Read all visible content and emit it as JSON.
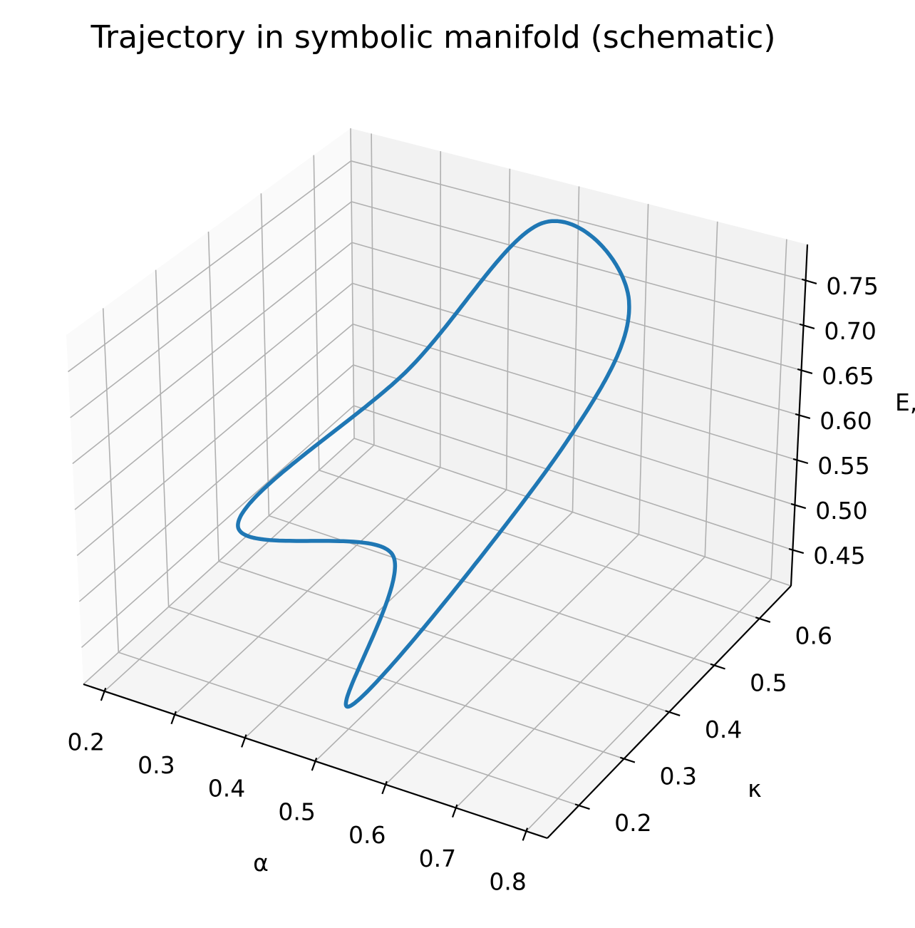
{
  "chart_data": {
    "type": "line",
    "projection": "3d",
    "title": "Trajectory in symbolic manifold (schematic)",
    "xlabel": "α",
    "ylabel": "κ",
    "zlabel": "E,",
    "xlim": [
      0.17,
      0.83
    ],
    "ylim": [
      0.13,
      0.67
    ],
    "zlim": [
      0.41,
      0.79
    ],
    "xticks": [
      0.2,
      0.3,
      0.4,
      0.5,
      0.6,
      0.7,
      0.8
    ],
    "xtick_labels": [
      "0.2",
      "0.3",
      "0.4",
      "0.5",
      "0.6",
      "0.7",
      "0.8"
    ],
    "yticks": [
      0.2,
      0.3,
      0.4,
      0.5,
      0.6
    ],
    "ytick_labels": [
      "0.2",
      "0.3",
      "0.4",
      "0.5",
      "0.6"
    ],
    "zticks": [
      0.45,
      0.5,
      0.55,
      0.6,
      0.65,
      0.7,
      0.75
    ],
    "ztick_labels": [
      "0.45",
      "0.50",
      "0.55",
      "0.60",
      "0.65",
      "0.70",
      "0.75"
    ],
    "grid": true,
    "series": [
      {
        "color": "#1f77b4",
        "points": [
          [
            0.5,
            0.6,
            0.78
          ],
          [
            0.3,
            0.6,
            0.56
          ],
          [
            0.2,
            0.4,
            0.46
          ],
          [
            0.5,
            0.3,
            0.55
          ],
          [
            0.52,
            0.18,
            0.45
          ],
          [
            0.75,
            0.3,
            0.72
          ],
          [
            0.7,
            0.5,
            0.78
          ]
        ]
      }
    ]
  }
}
